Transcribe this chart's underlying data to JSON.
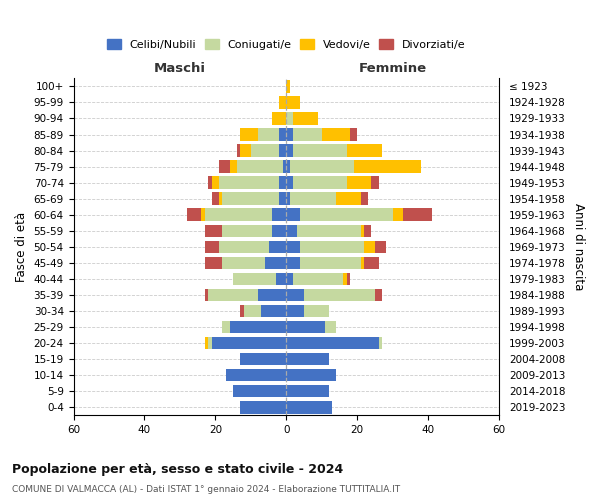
{
  "age_groups": [
    "0-4",
    "5-9",
    "10-14",
    "15-19",
    "20-24",
    "25-29",
    "30-34",
    "35-39",
    "40-44",
    "45-49",
    "50-54",
    "55-59",
    "60-64",
    "65-69",
    "70-74",
    "75-79",
    "80-84",
    "85-89",
    "90-94",
    "95-99",
    "100+"
  ],
  "birth_years": [
    "2019-2023",
    "2014-2018",
    "2009-2013",
    "2004-2008",
    "1999-2003",
    "1994-1998",
    "1989-1993",
    "1984-1988",
    "1979-1983",
    "1974-1978",
    "1969-1973",
    "1964-1968",
    "1959-1963",
    "1954-1958",
    "1949-1953",
    "1944-1948",
    "1939-1943",
    "1934-1938",
    "1929-1933",
    "1924-1928",
    "≤ 1923"
  ],
  "male": {
    "celibi": [
      13,
      15,
      17,
      13,
      21,
      16,
      7,
      8,
      3,
      6,
      5,
      4,
      4,
      2,
      2,
      1,
      2,
      2,
      0,
      0,
      0
    ],
    "coniugati": [
      0,
      0,
      0,
      0,
      1,
      2,
      5,
      14,
      12,
      12,
      14,
      14,
      19,
      16,
      17,
      13,
      8,
      6,
      0,
      0,
      0
    ],
    "vedovi": [
      0,
      0,
      0,
      0,
      1,
      0,
      0,
      0,
      0,
      0,
      0,
      0,
      1,
      1,
      2,
      2,
      3,
      5,
      4,
      2,
      0
    ],
    "divorziati": [
      0,
      0,
      0,
      0,
      0,
      0,
      1,
      1,
      0,
      5,
      4,
      5,
      4,
      2,
      1,
      3,
      1,
      0,
      0,
      0,
      0
    ]
  },
  "female": {
    "nubili": [
      13,
      12,
      14,
      12,
      26,
      11,
      5,
      5,
      2,
      4,
      4,
      3,
      4,
      1,
      2,
      1,
      2,
      2,
      0,
      0,
      0
    ],
    "coniugate": [
      0,
      0,
      0,
      0,
      1,
      3,
      7,
      20,
      14,
      17,
      18,
      18,
      26,
      13,
      15,
      18,
      15,
      8,
      2,
      0,
      0
    ],
    "vedove": [
      0,
      0,
      0,
      0,
      0,
      0,
      0,
      0,
      1,
      1,
      3,
      1,
      3,
      7,
      7,
      19,
      10,
      8,
      7,
      4,
      1
    ],
    "divorziate": [
      0,
      0,
      0,
      0,
      0,
      0,
      0,
      2,
      1,
      4,
      3,
      2,
      8,
      2,
      2,
      0,
      0,
      2,
      0,
      0,
      0
    ]
  },
  "colors": {
    "celibi": "#4472c4",
    "coniugati": "#c5d9a0",
    "vedovi": "#ffc000",
    "divorziati": "#c0504d"
  },
  "xlim": 60,
  "title": "Popolazione per età, sesso e stato civile - 2024",
  "subtitle": "COMUNE DI VALMACCA (AL) - Dati ISTAT 1° gennaio 2024 - Elaborazione TUTTITALIA.IT",
  "ylabel_left": "Fasce di età",
  "ylabel_right": "Anni di nascita",
  "xlabel_left": "Maschi",
  "xlabel_right": "Femmine",
  "legend_labels": [
    "Celibi/Nubili",
    "Coniugati/e",
    "Vedovi/e",
    "Divorziati/e"
  ],
  "background_color": "#ffffff",
  "grid_color": "#cccccc"
}
